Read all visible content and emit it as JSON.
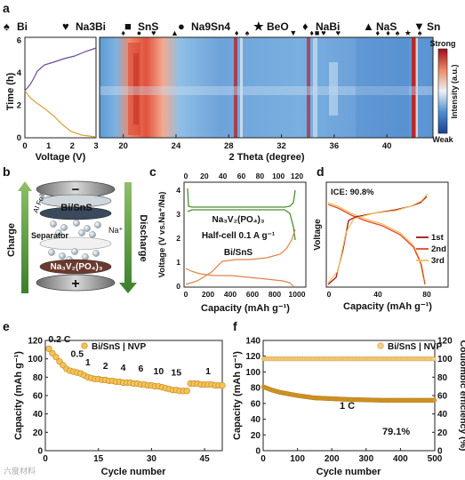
{
  "panel_labels": {
    "a": "a",
    "b": "b",
    "c": "c",
    "d": "d",
    "e": "e",
    "f": "f"
  },
  "legend_a": [
    {
      "symbol": "♠",
      "label": "Bi"
    },
    {
      "symbol": "♥",
      "label": "Na3Bi"
    },
    {
      "symbol": "■",
      "label": "SnS"
    },
    {
      "symbol": "●",
      "label": "Na9Sn4"
    },
    {
      "symbol": "★",
      "label": "BeO"
    },
    {
      "symbol": "♦",
      "label": "NaBi"
    },
    {
      "symbol": "▲",
      "label": "NaS"
    },
    {
      "symbol": "▼",
      "label": "Sn"
    }
  ],
  "panel_a": {
    "ylabel": "Time (h)",
    "xlabel_left": "Voltage (V)",
    "xlabel_main": "2 Theta (degree)",
    "y_ticks": [
      "0",
      "2",
      "4",
      "6"
    ],
    "x_ticks_left": [
      "0",
      "1",
      "2",
      "3"
    ],
    "x_ticks_main": [
      "20",
      "24",
      "28",
      "32",
      "36",
      "40"
    ],
    "colorbar_label": "Intensity (a.u.)",
    "colorbar_top": "Strong",
    "colorbar_bottom": "Weak",
    "peak_markers": [
      {
        "theta": 20.0,
        "symbol": "♦"
      },
      {
        "theta": 21.2,
        "symbol": "●"
      },
      {
        "theta": 22.3,
        "symbol": "♥"
      },
      {
        "theta": 23.9,
        "symbol": "▲"
      },
      {
        "theta": 28.6,
        "symbol": "♦"
      },
      {
        "theta": 29.4,
        "symbol": "♠"
      },
      {
        "theta": 32.9,
        "symbol": "▼"
      },
      {
        "theta": 34.3,
        "symbol": "♦"
      },
      {
        "theta": 34.7,
        "symbol": "■"
      },
      {
        "theta": 35.2,
        "symbol": "♥"
      },
      {
        "theta": 36.3,
        "symbol": "♥"
      },
      {
        "theta": 39.3,
        "symbol": "♦"
      },
      {
        "theta": 40.1,
        "symbol": "♦"
      },
      {
        "theta": 40.8,
        "symbol": "♠"
      },
      {
        "theta": 41.6,
        "symbol": "★"
      },
      {
        "theta": 42.5,
        "symbol": "♠"
      }
    ]
  },
  "panel_b": {
    "charge": "Charge",
    "discharge": "Discharge",
    "al_foil": "Al Foil",
    "anode": "Bi/SnS",
    "separator": "Separator",
    "na_ion": "Na⁺",
    "cathode": "Na₃V₂(PO₄)₃",
    "minus": "−",
    "plus": "+"
  },
  "panel_c": {
    "ylabel": "Voltage (V vs.Na⁺/Na)",
    "xlabel": "Capacity (mAh g⁻¹)",
    "top_ticks": [
      "0",
      "20",
      "40",
      "60",
      "80",
      "100",
      "120"
    ],
    "bottom_ticks": [
      "0",
      "200",
      "400",
      "600",
      "800",
      "1000"
    ],
    "y_ticks": [
      "0",
      "1",
      "2",
      "3",
      "4"
    ],
    "label_cathode": "Na₃V₂(PO₄)₃",
    "label_halfcell": "Half-cell  0.1 A g⁻¹",
    "label_anode": "Bi/SnS"
  },
  "panel_d": {
    "ylabel": "Voltage",
    "xlabel": "Capacity (mAh g⁻¹)",
    "x_ticks": [
      "0",
      "40",
      "80"
    ],
    "ice": "ICE: 90.8%",
    "legend": [
      {
        "label": "1st",
        "color": "#a31515"
      },
      {
        "label": "2nd",
        "color": "#e04a2a"
      },
      {
        "label": "3rd",
        "color": "#f0c060"
      }
    ]
  },
  "chart_data": [
    {
      "type": "scatter",
      "panel": "e",
      "legend": "Bi/SnS | NVP",
      "xlabel": "Cycle number",
      "ylabel": "Capacity (mAh g⁻¹)",
      "xlim": [
        0,
        50
      ],
      "ylim": [
        0,
        120
      ],
      "x_ticks": [
        "0",
        "15",
        "30",
        "45"
      ],
      "y_ticks": [
        "0",
        "20",
        "40",
        "60",
        "80",
        "100",
        "120"
      ],
      "rate_labels": [
        "0.2 C",
        "0.5",
        "1",
        "2",
        "4",
        "6",
        "10",
        "15",
        "1"
      ],
      "series": [
        {
          "name": "Bi/SnS | NVP",
          "x": [
            1,
            2,
            3,
            4,
            5,
            6,
            7,
            8,
            9,
            10,
            11,
            12,
            13,
            14,
            15,
            16,
            17,
            18,
            19,
            20,
            21,
            22,
            23,
            24,
            25,
            26,
            27,
            28,
            29,
            30,
            31,
            32,
            33,
            34,
            35,
            36,
            37,
            38,
            39,
            40,
            41,
            42,
            43,
            44,
            45,
            46,
            47,
            48,
            49,
            50
          ],
          "y": [
            111,
            106,
            102,
            97,
            93,
            89,
            87,
            86,
            85,
            84,
            82,
            80,
            79,
            78,
            78,
            77,
            77,
            76,
            76,
            75,
            75,
            74,
            74,
            74,
            73,
            73,
            72,
            72,
            71,
            71,
            70,
            70,
            69,
            68,
            67,
            66,
            66,
            65,
            65,
            65,
            73,
            73,
            73,
            72,
            72,
            72,
            72,
            71,
            71,
            71
          ]
        }
      ]
    },
    {
      "type": "scatter",
      "panel": "f",
      "legend": "Bi/SnS | NVP",
      "xlabel": "Cycle number",
      "ylabel": "Capacity (mAh g⁻¹)",
      "y2label": "Coulombic efficiency (%)",
      "xlim": [
        0,
        500
      ],
      "ylim": [
        0,
        140
      ],
      "y2lim": [
        0,
        120
      ],
      "x_ticks": [
        "0",
        "100",
        "200",
        "300",
        "400",
        "500"
      ],
      "y_ticks": [
        "0",
        "20",
        "40",
        "60",
        "80",
        "100",
        "120",
        "140"
      ],
      "y2_ticks": [
        "0",
        "20",
        "40",
        "60",
        "80",
        "100",
        "120"
      ],
      "annotation_rate": "1 C",
      "annotation_retention": "79.1%",
      "series": [
        {
          "name": "Capacity",
          "x": [
            1,
            25,
            50,
            100,
            150,
            200,
            250,
            300,
            350,
            400,
            450,
            500
          ],
          "y": [
            81,
            77,
            74,
            70,
            67,
            66,
            65,
            64.5,
            64,
            64,
            64,
            64
          ]
        },
        {
          "name": "Coulombic efficiency",
          "x": [
            1,
            50,
            100,
            150,
            200,
            250,
            300,
            350,
            400,
            450,
            500
          ],
          "y": [
            100,
            100,
            100,
            100,
            100,
            100,
            100,
            100,
            100,
            100,
            100
          ]
        }
      ]
    }
  ],
  "watermark": "六度材料"
}
